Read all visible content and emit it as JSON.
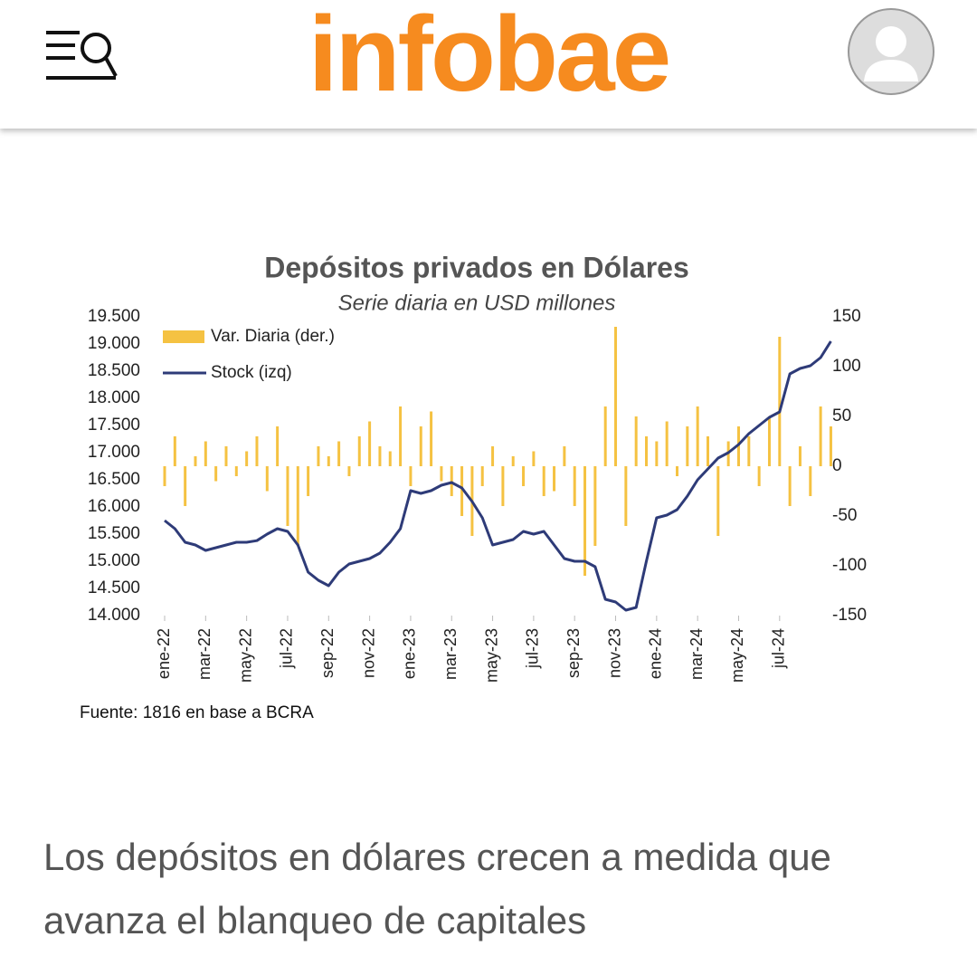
{
  "header": {
    "logo": "infobae"
  },
  "chart_data": {
    "type": "line",
    "title": "Depósitos privados en Dólares",
    "subtitle": "Serie diaria en USD millones",
    "source": "Fuente: 1816 en base a BCRA",
    "categories": [
      "ene-22",
      null,
      null,
      null,
      "mar-22",
      null,
      null,
      null,
      "may-22",
      null,
      null,
      null,
      "jul-22",
      null,
      null,
      null,
      "sep-22",
      null,
      null,
      null,
      "nov-22",
      null,
      null,
      null,
      "ene-23",
      null,
      null,
      null,
      "mar-23",
      null,
      null,
      null,
      "may-23",
      null,
      null,
      null,
      "jul-23",
      null,
      null,
      null,
      "sep-23",
      null,
      null,
      null,
      "nov-23",
      null,
      null,
      null,
      "ene-24",
      null,
      null,
      null,
      "mar-24",
      null,
      null,
      null,
      "may-24",
      null,
      null,
      null,
      "jul-24",
      null,
      null,
      null,
      null,
      null
    ],
    "series": [
      {
        "name": "Var. Diaria (der.)",
        "type": "bar",
        "axis": "y2",
        "color": "#f5c242",
        "values": [
          -20,
          30,
          -40,
          10,
          25,
          -15,
          20,
          -10,
          15,
          30,
          -25,
          40,
          -60,
          -80,
          -30,
          20,
          10,
          25,
          -10,
          30,
          45,
          20,
          15,
          60,
          -20,
          40,
          55,
          -15,
          -30,
          -50,
          -70,
          -20,
          20,
          -40,
          10,
          -20,
          15,
          -30,
          -25,
          20,
          -40,
          -110,
          -80,
          60,
          140,
          -60,
          50,
          30,
          25,
          45,
          -10,
          40,
          60,
          30,
          -70,
          25,
          40,
          30,
          -20,
          50,
          130,
          -40,
          20,
          -30,
          60,
          40
        ]
      },
      {
        "name": "Stock (izq)",
        "type": "line",
        "color": "#2e3b78",
        "values": [
          15750,
          15600,
          15350,
          15300,
          15200,
          15250,
          15300,
          15350,
          15350,
          15380,
          15500,
          15600,
          15550,
          15300,
          14800,
          14650,
          14550,
          14800,
          14950,
          15000,
          15050,
          15150,
          15350,
          15600,
          16300,
          16250,
          16300,
          16400,
          16450,
          16350,
          16100,
          15800,
          15300,
          15350,
          15400,
          15550,
          15500,
          15550,
          15300,
          15050,
          15000,
          15000,
          14900,
          14300,
          14250,
          14100,
          14150,
          15000,
          15800,
          15850,
          15950,
          16200,
          16500,
          16700,
          16900,
          17000,
          17150,
          17350,
          17500,
          17650,
          17750,
          18450,
          18550,
          18600,
          18750,
          19050
        ]
      }
    ],
    "ylim": [
      14000,
      19500
    ],
    "yticks": [
      {
        "value": 19500,
        "label": "19.500"
      },
      {
        "value": 19000,
        "label": "19.000"
      },
      {
        "value": 18500,
        "label": "18.500"
      },
      {
        "value": 18000,
        "label": "18.000"
      },
      {
        "value": 17500,
        "label": "17.500"
      },
      {
        "value": 17000,
        "label": "17.000"
      },
      {
        "value": 16500,
        "label": "16.500"
      },
      {
        "value": 16000,
        "label": "16.000"
      },
      {
        "value": 15500,
        "label": "15.500"
      },
      {
        "value": 15000,
        "label": "15.000"
      },
      {
        "value": 14500,
        "label": "14.500"
      },
      {
        "value": 14000,
        "label": "14.000"
      }
    ],
    "y2lim": [
      -150,
      150
    ],
    "y2ticks": [
      150,
      100,
      50,
      0,
      -50,
      -100,
      -150
    ],
    "legend": "upper left"
  },
  "caption": "Los depósitos en dólares crecen a medida que avanza el blanqueo de capitales"
}
